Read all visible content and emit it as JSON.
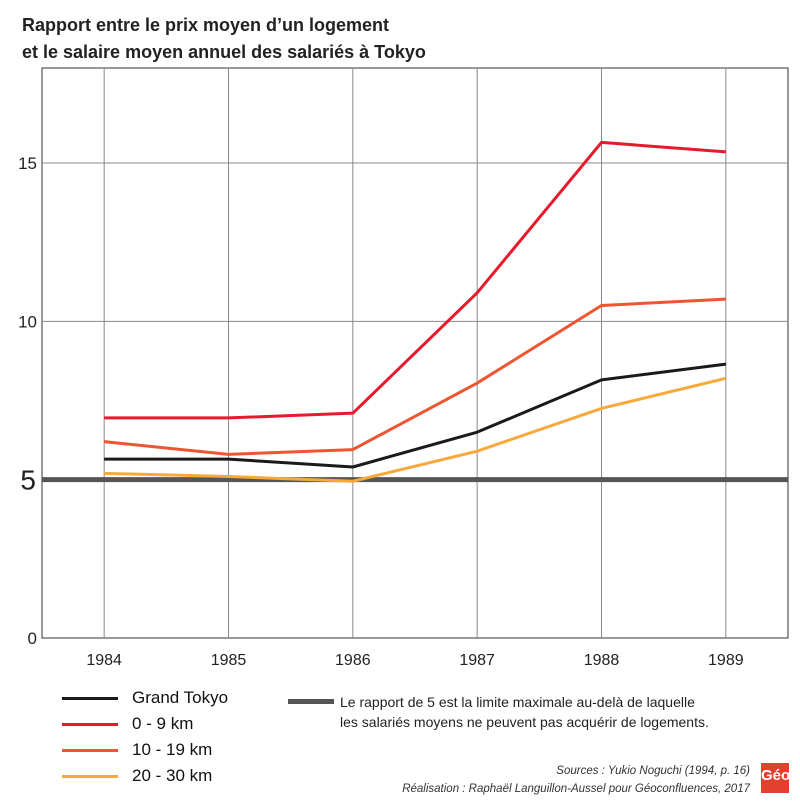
{
  "chart_data": {
    "type": "line",
    "title": "Rapport entre le prix moyen d’un logement et le salaire moyen annuel des salariés à Tokyo",
    "title_lines": [
      "Rapport entre le prix moyen d’un logement",
      "et le salaire moyen annuel des salariés à Tokyo"
    ],
    "x": [
      1984,
      1985,
      1986,
      1987,
      1988,
      1989
    ],
    "xlim": [
      1983.5,
      1989.5
    ],
    "ylim": [
      0,
      18
    ],
    "yticks": [
      0,
      5,
      10,
      15
    ],
    "grid": true,
    "series": [
      {
        "name": "Grand Tokyo",
        "color": "#1a1a1a",
        "values": [
          5.65,
          5.65,
          5.4,
          6.5,
          8.15,
          8.65
        ]
      },
      {
        "name": "0 - 9 km",
        "color": "#e8192c",
        "values": [
          6.95,
          6.95,
          7.1,
          10.9,
          15.65,
          15.35
        ]
      },
      {
        "name": "10 - 19 km",
        "color": "#ee5530",
        "values": [
          6.2,
          5.8,
          5.95,
          8.05,
          10.5,
          10.7
        ]
      },
      {
        "name": "20 - 30 km",
        "color": "#f7a93b",
        "values": [
          5.2,
          5.1,
          4.95,
          5.9,
          7.25,
          8.2
        ]
      }
    ],
    "reference_line": {
      "value": 5,
      "color": "#555555",
      "label_lines": [
        "Le rapport de 5 est la limite maximale au-delà de laquelle",
        "les salariés moyens ne peuvent pas acquérir de logements."
      ]
    },
    "legend_placement": "bottom"
  },
  "sources": "Sources :  Yukio Noguchi (1994, p. 16)",
  "credit": "Réalisation : Raphaël Languillon-Aussel pour Géoconfluences, 2017",
  "logo_text": "Géo"
}
